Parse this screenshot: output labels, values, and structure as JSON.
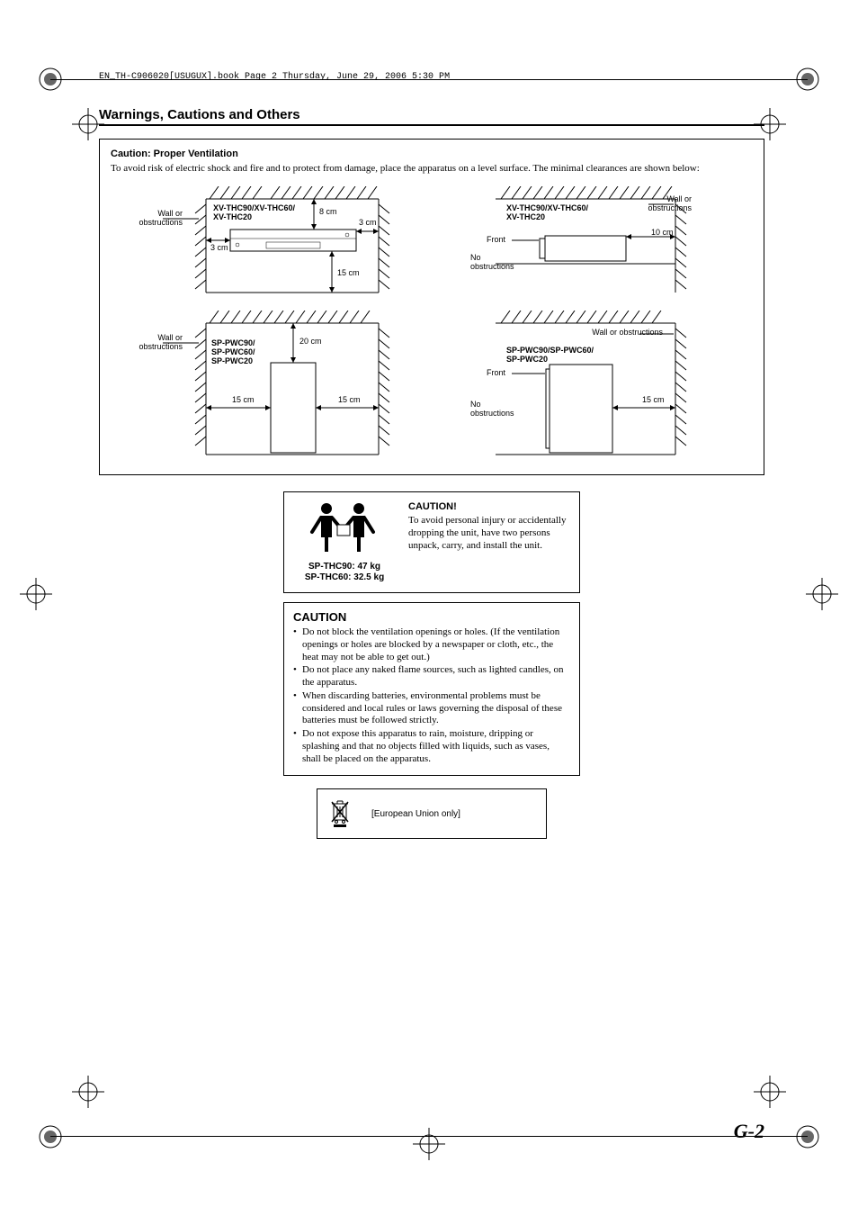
{
  "header": "EN_TH-C906020[USUGUX].book  Page 2  Thursday, June 29, 2006  5:30 PM",
  "section_title": "Warnings, Cautions and Others",
  "ventilation": {
    "title": "Caution: Proper Ventilation",
    "text": "To avoid risk of electric shock and fire and to protect from damage, place the apparatus on a level surface. The minimal clearances are shown below:"
  },
  "diag1": {
    "wall_label": "Wall or\nobstructions",
    "product": "XV-THC90/XV-THC60/\nXV-THC20",
    "top": "8 cm",
    "right": "3 cm",
    "left": "3 cm",
    "bottom": "15 cm"
  },
  "diag2": {
    "wall_right": "Wall or\nobstructions",
    "front": "Front",
    "no_obs": "No\nobstructions",
    "product": "XV-THC90/XV-THC60/\nXV-THC20",
    "right": "10 cm"
  },
  "diag3": {
    "wall_label": "Wall or\nobstructions",
    "product": "SP-PWC90/\nSP-PWC60/\nSP-PWC20",
    "top": "20 cm",
    "left": "15 cm",
    "right": "15 cm"
  },
  "diag4": {
    "wall_right": "Wall or obstructions",
    "front": "Front",
    "no_obs": "No\nobstructions",
    "product": "SP-PWC90/SP-PWC60/\nSP-PWC20",
    "right": "15 cm"
  },
  "two_person": {
    "weights": "SP-THC90: 47 kg\nSP-THC60: 32.5 kg",
    "title": "CAUTION!",
    "text": "To avoid personal injury or accidentally dropping the unit, have two persons unpack, carry, and install the unit."
  },
  "caution_list": {
    "title": "CAUTION",
    "items": [
      "Do not block the ventilation openings or holes.\n(If the ventilation openings or holes are blocked by a newspaper or cloth, etc., the heat may not be able to get out.)",
      "Do not place any naked flame sources, such as lighted candles, on the apparatus.",
      "When discarding batteries, environmental problems must be considered and local rules or laws governing the disposal of these batteries must be followed strictly.",
      "Do not expose this apparatus to rain, moisture, dripping or splashing and that no objects filled with liquids, such as vases, shall be placed on the apparatus."
    ]
  },
  "eu_note": "[European Union only]",
  "page_number": "G-2"
}
